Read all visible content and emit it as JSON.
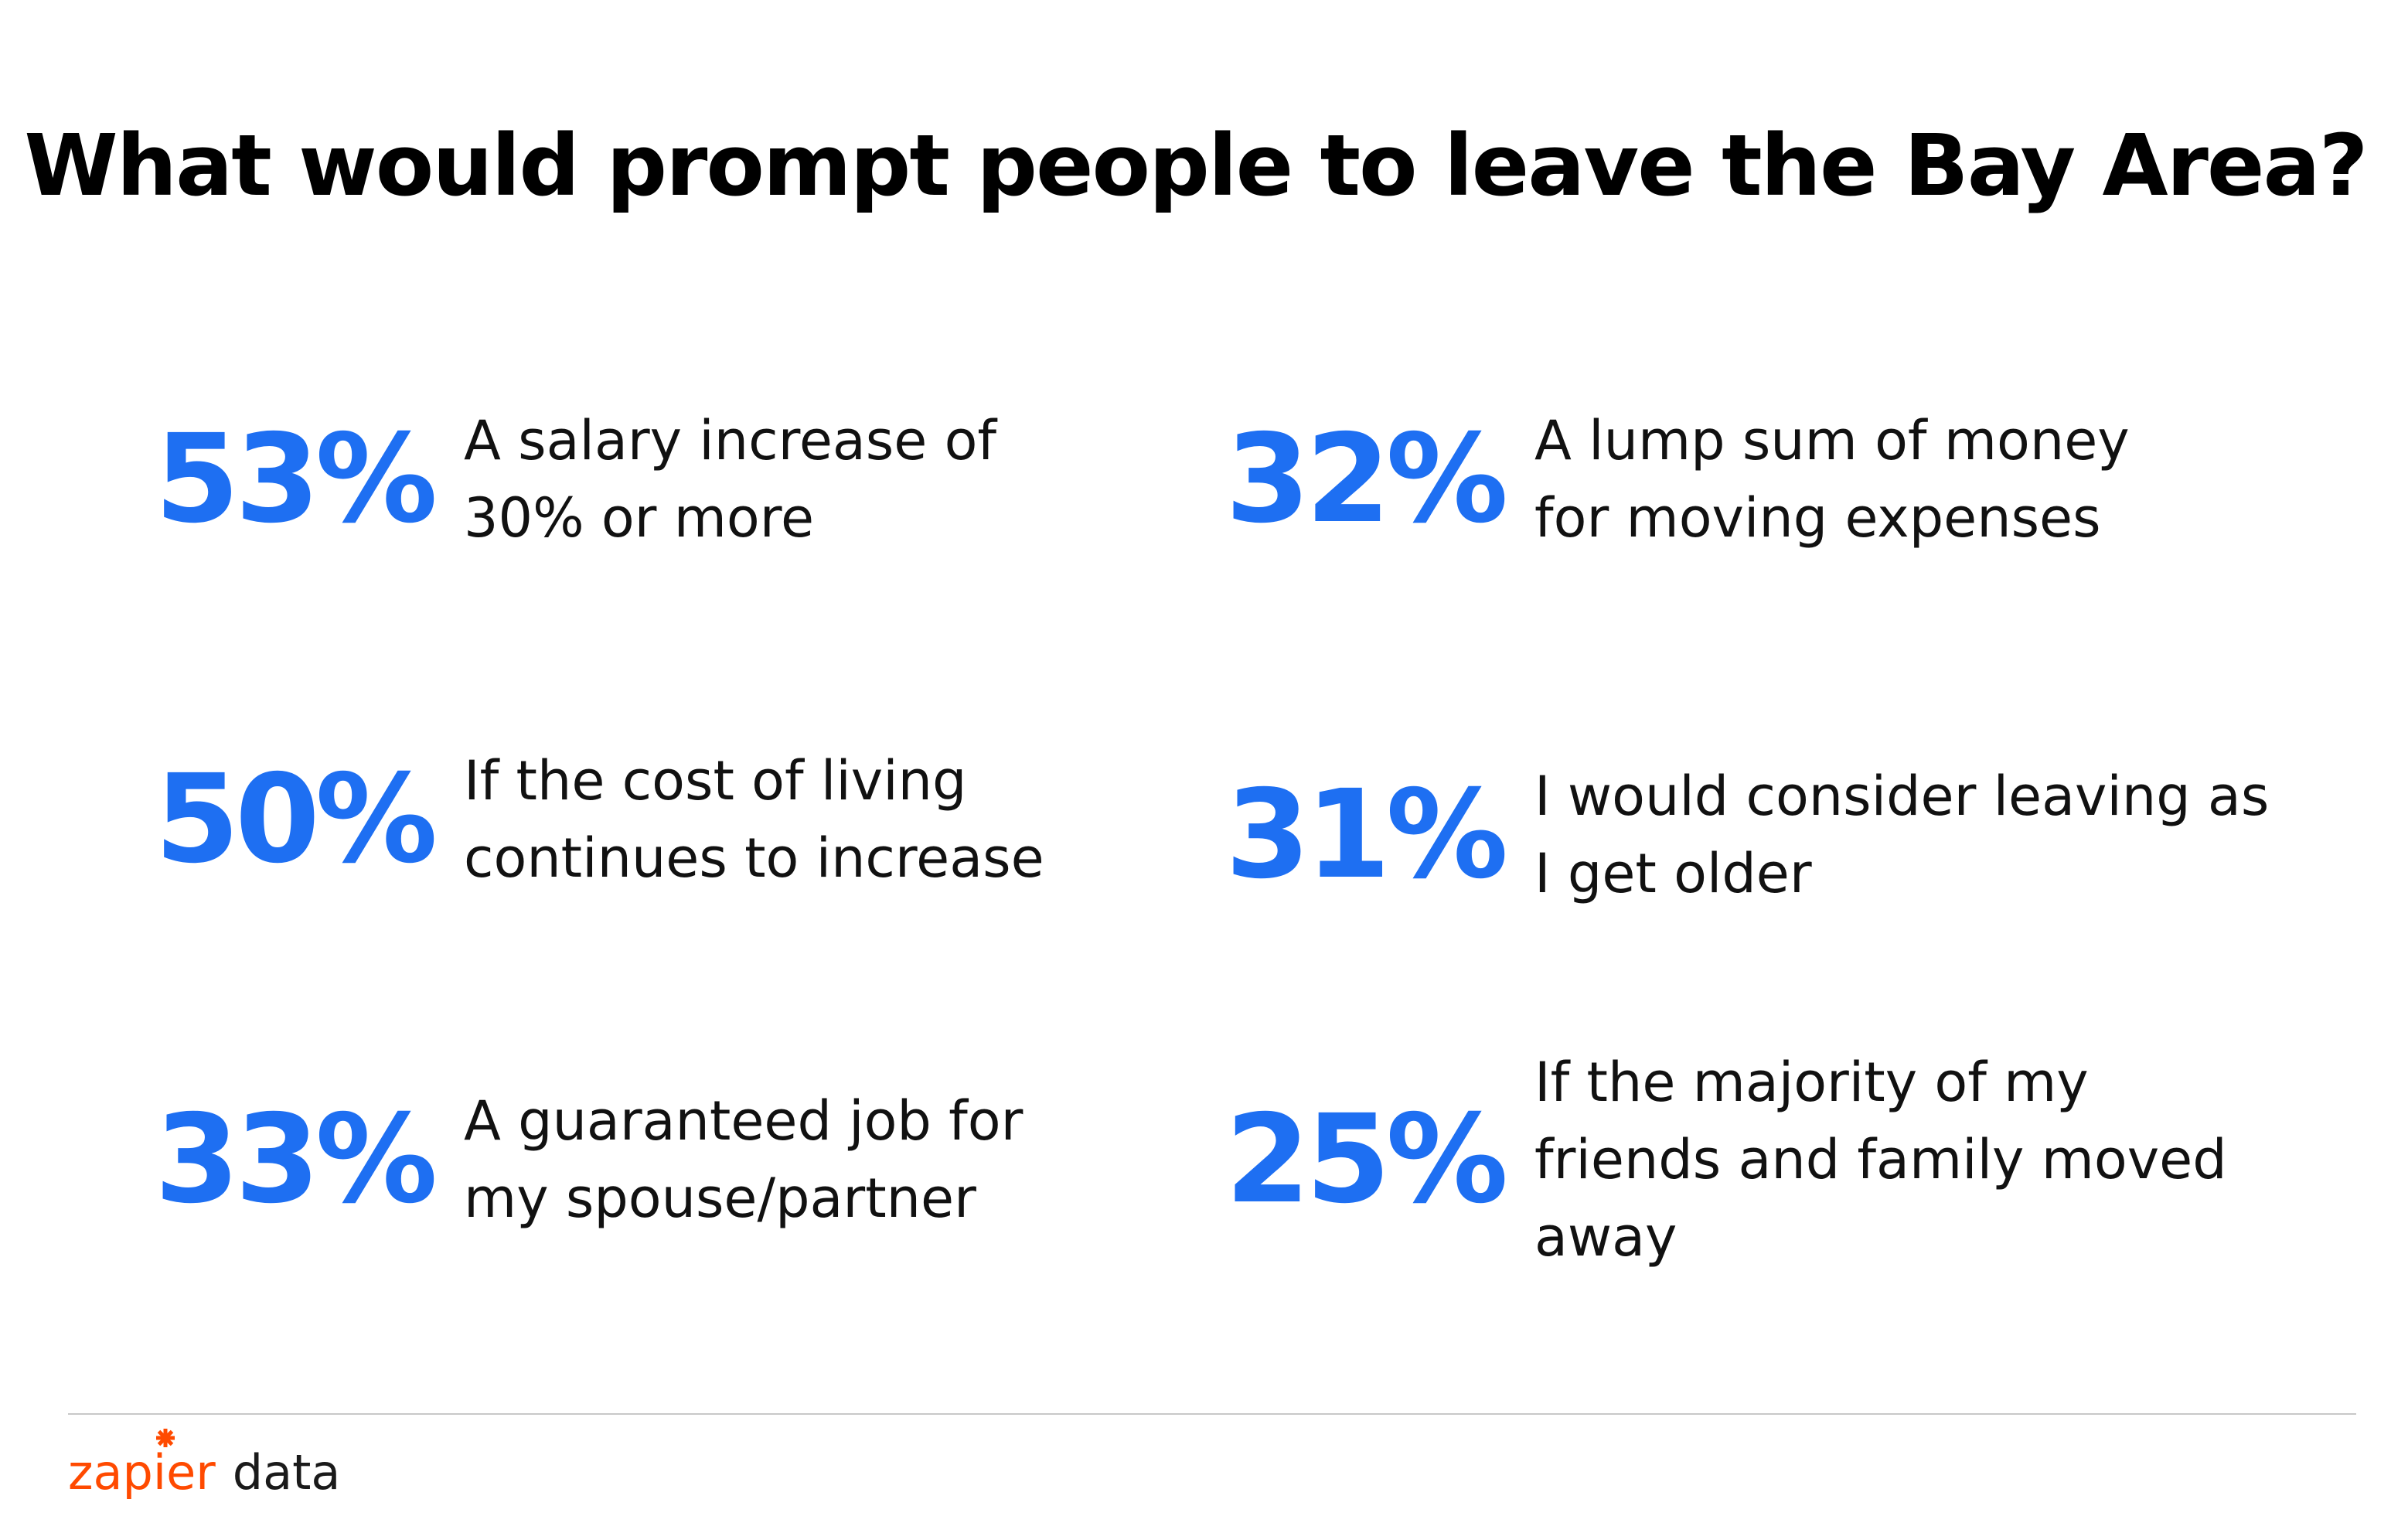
{
  "title": "What would prompt people to leave the Bay Area?",
  "accent_color": "#1e6ff2",
  "stats": [
    {
      "value": "53%",
      "lines": [
        "A salary increase of",
        "30% or more"
      ]
    },
    {
      "value": "50%",
      "lines": [
        "If the cost of living",
        "continues to increase"
      ]
    },
    {
      "value": "33%",
      "lines": [
        "A guaranteed job for",
        "my spouse/partner"
      ]
    },
    {
      "value": "32%",
      "lines": [
        "A lump sum of money",
        "for moving expenses"
      ]
    },
    {
      "value": "31%",
      "lines": [
        "I would consider leaving as",
        "I get older"
      ]
    },
    {
      "value": "25%",
      "lines": [
        "If the majority of my",
        "friends and family moved",
        "away"
      ]
    }
  ],
  "footer": {
    "brand": "zapier",
    "brand_color": "#ff4a00",
    "suffix": "data",
    "icon": "asterisk-icon"
  }
}
